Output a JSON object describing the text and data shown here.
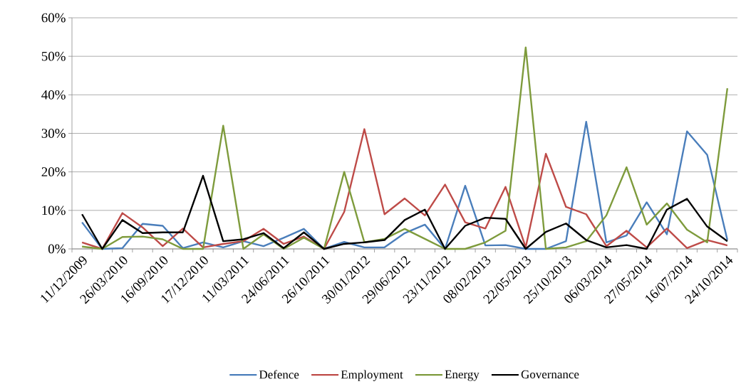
{
  "chart_data": {
    "type": "line",
    "categories": [
      "11/12/2009",
      null,
      "26/03/2010",
      null,
      "16/09/2010",
      null,
      "17/12/2010",
      null,
      "11/03/2011",
      null,
      "24/06/2011",
      null,
      "26/10/2011",
      null,
      "30/01/2012",
      null,
      "29/06/2012",
      null,
      "23/11/2012",
      null,
      "08/02/2013",
      null,
      "22/05/2013",
      null,
      "25/10/2013",
      null,
      "06/03/2014",
      null,
      "27/05/2014",
      null,
      "16/07/2014",
      null,
      "24/10/2014"
    ],
    "series": [
      {
        "name": "Defence",
        "color": "#4a7ebb",
        "values": [
          6.9,
          0,
          0.2,
          6.5,
          6.0,
          0.2,
          1.7,
          0.4,
          2.0,
          0.7,
          2.9,
          5.2,
          0,
          1.8,
          0.4,
          0.4,
          4.1,
          6.3,
          0,
          16.4,
          0.9,
          1.0,
          0,
          0,
          2.0,
          33,
          1.7,
          3.5,
          12.1,
          3.8,
          30.5,
          24.4,
          2.3
        ]
      },
      {
        "name": "Employment",
        "color": "#be4b48",
        "values": [
          1.7,
          0,
          9.3,
          5.6,
          0.7,
          5.3,
          0.4,
          1.3,
          2.0,
          5.2,
          1.3,
          3.2,
          0,
          9.6,
          31.1,
          9.0,
          13.1,
          8.7,
          16.7,
          6.9,
          5.3,
          16.1,
          0.4,
          24.7,
          10.9,
          9.0,
          0.7,
          4.7,
          0.4,
          5.3,
          0.2,
          2.3,
          0.9
        ]
      },
      {
        "name": "Energy",
        "color": "#7e9b3c",
        "values": [
          0.6,
          0,
          3.1,
          3.2,
          2.5,
          0,
          0,
          32,
          0,
          3.8,
          0,
          2.9,
          0,
          20,
          1.7,
          2.6,
          5.2,
          2.6,
          0,
          0,
          1.7,
          4.7,
          52.3,
          0,
          0.4,
          2.0,
          8.7,
          21.2,
          6.3,
          11.8,
          5.0,
          1.7,
          41.7
        ]
      },
      {
        "name": "Governance",
        "color": "#000000",
        "values": [
          9.0,
          0,
          7.5,
          4.1,
          4.3,
          4.3,
          19.0,
          2.0,
          2.5,
          4.1,
          0.2,
          4.3,
          0,
          1.3,
          1.7,
          2.3,
          7.5,
          10.2,
          0,
          6.0,
          8.1,
          7.8,
          0,
          4.4,
          6.6,
          2.3,
          0.4,
          1.0,
          0,
          10.2,
          13.0,
          5.8,
          2.0
        ]
      }
    ],
    "ylim": [
      0,
      60
    ],
    "yticks": [
      {
        "value": 0,
        "label": "0%"
      },
      {
        "value": 10,
        "label": "10%"
      },
      {
        "value": 20,
        "label": "20%"
      },
      {
        "value": 30,
        "label": "30%"
      },
      {
        "value": 40,
        "label": "40%"
      },
      {
        "value": 50,
        "label": "50%"
      },
      {
        "value": 60,
        "label": "60%"
      }
    ],
    "grid": "y",
    "legend": "bottom",
    "marker": "none",
    "line_style": "solid"
  }
}
